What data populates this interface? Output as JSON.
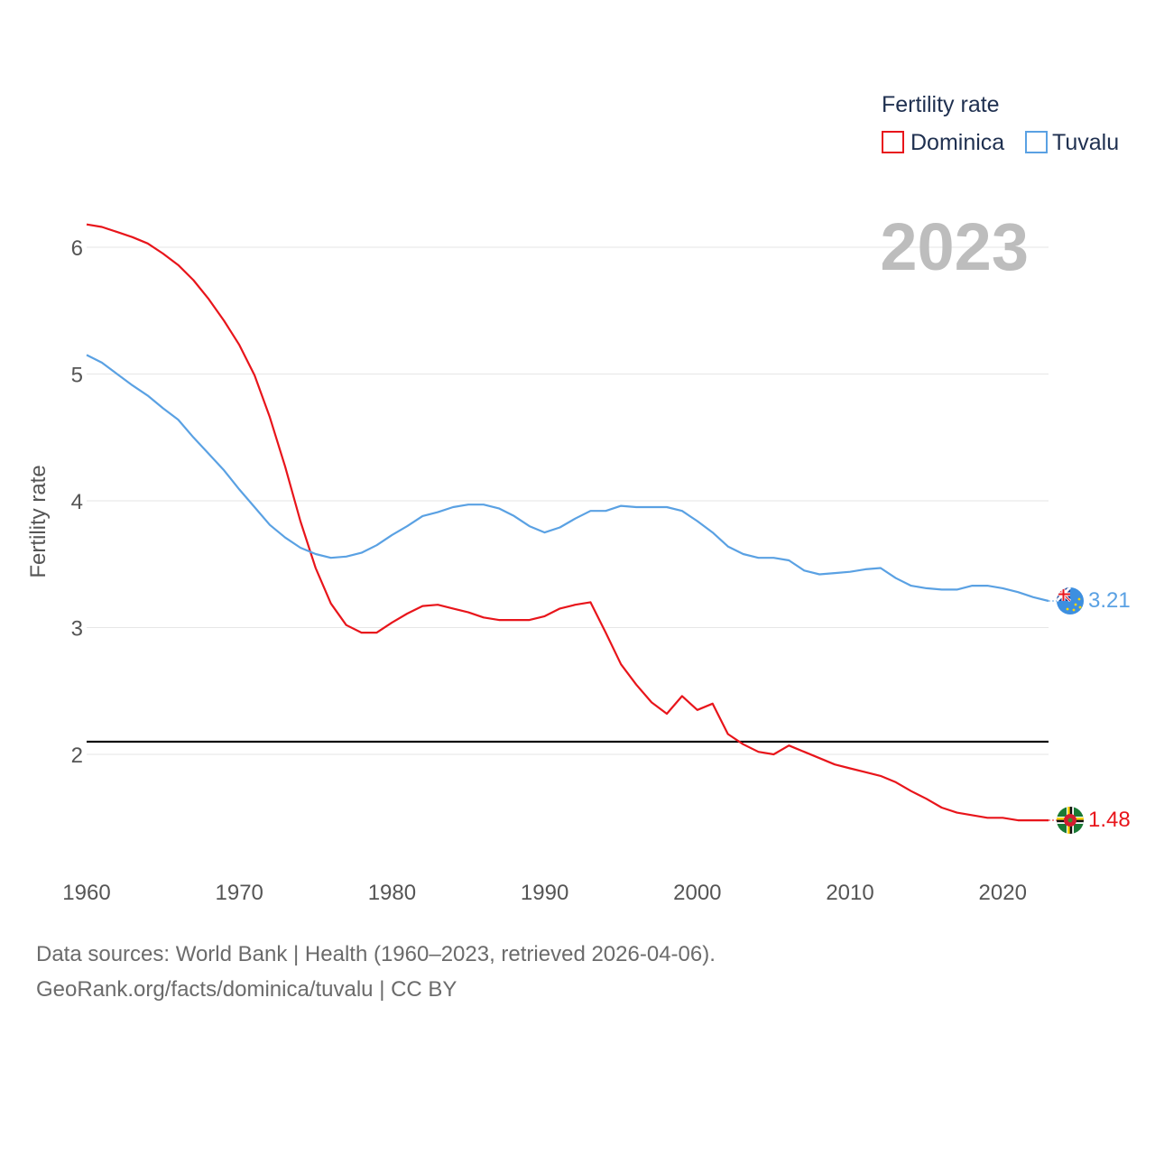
{
  "chart_data": {
    "type": "line",
    "current_year_label": "2023",
    "ylabel": "Fertility rate",
    "xlabel": "",
    "xlim": [
      1960,
      2023
    ],
    "ylim": [
      1.0,
      6.5
    ],
    "x_ticks": [
      1960,
      1970,
      1980,
      1990,
      2000,
      2010,
      2020
    ],
    "y_ticks": [
      2,
      3,
      4,
      5,
      6
    ],
    "reference_line": {
      "y": 2.1,
      "color": "#000000"
    },
    "legend": {
      "title": "Fertility rate",
      "position": "top-right"
    },
    "x": [
      1960,
      1961,
      1962,
      1963,
      1964,
      1965,
      1966,
      1967,
      1968,
      1969,
      1970,
      1971,
      1972,
      1973,
      1974,
      1975,
      1976,
      1977,
      1978,
      1979,
      1980,
      1981,
      1982,
      1983,
      1984,
      1985,
      1986,
      1987,
      1988,
      1989,
      1990,
      1991,
      1992,
      1993,
      1994,
      1995,
      1996,
      1997,
      1998,
      1999,
      2000,
      2001,
      2002,
      2003,
      2004,
      2005,
      2006,
      2007,
      2008,
      2009,
      2010,
      2011,
      2012,
      2013,
      2014,
      2015,
      2016,
      2017,
      2018,
      2019,
      2020,
      2021,
      2022,
      2023
    ],
    "series": [
      {
        "name": "Dominica",
        "color": "#e8151b",
        "flag_icon": "dominica-flag-icon",
        "end_label": "1.48",
        "values": [
          6.18,
          6.16,
          6.12,
          6.08,
          6.03,
          5.95,
          5.86,
          5.74,
          5.59,
          5.42,
          5.23,
          4.99,
          4.66,
          4.27,
          3.84,
          3.47,
          3.19,
          3.02,
          2.96,
          2.96,
          3.04,
          3.11,
          3.17,
          3.18,
          3.15,
          3.12,
          3.08,
          3.06,
          3.06,
          3.06,
          3.09,
          3.15,
          3.18,
          3.2,
          2.96,
          2.71,
          2.55,
          2.41,
          2.32,
          2.46,
          2.35,
          2.4,
          2.16,
          2.08,
          2.02,
          2.0,
          2.07,
          2.02,
          1.97,
          1.92,
          1.89,
          1.86,
          1.83,
          1.78,
          1.71,
          1.65,
          1.58,
          1.54,
          1.52,
          1.5,
          1.5,
          1.48,
          1.48,
          1.48
        ]
      },
      {
        "name": "Tuvalu",
        "color": "#5aa1e3",
        "flag_icon": "tuvalu-flag-icon",
        "end_label": "3.21",
        "values": [
          5.15,
          5.09,
          5.0,
          4.91,
          4.83,
          4.73,
          4.64,
          4.5,
          4.37,
          4.24,
          4.09,
          3.95,
          3.81,
          3.71,
          3.63,
          3.58,
          3.55,
          3.56,
          3.59,
          3.65,
          3.73,
          3.8,
          3.88,
          3.91,
          3.95,
          3.97,
          3.97,
          3.94,
          3.88,
          3.8,
          3.75,
          3.79,
          3.86,
          3.92,
          3.92,
          3.96,
          3.95,
          3.95,
          3.95,
          3.92,
          3.84,
          3.75,
          3.64,
          3.58,
          3.55,
          3.55,
          3.53,
          3.45,
          3.42,
          3.43,
          3.44,
          3.46,
          3.47,
          3.39,
          3.33,
          3.31,
          3.3,
          3.3,
          3.33,
          3.33,
          3.31,
          3.28,
          3.24,
          3.21
        ]
      }
    ]
  },
  "footer": {
    "line1": "Data sources: World Bank | Health (1960–2023, retrieved 2026-04-06).",
    "line2": "GeoRank.org/facts/dominica/tuvalu | CC BY"
  }
}
